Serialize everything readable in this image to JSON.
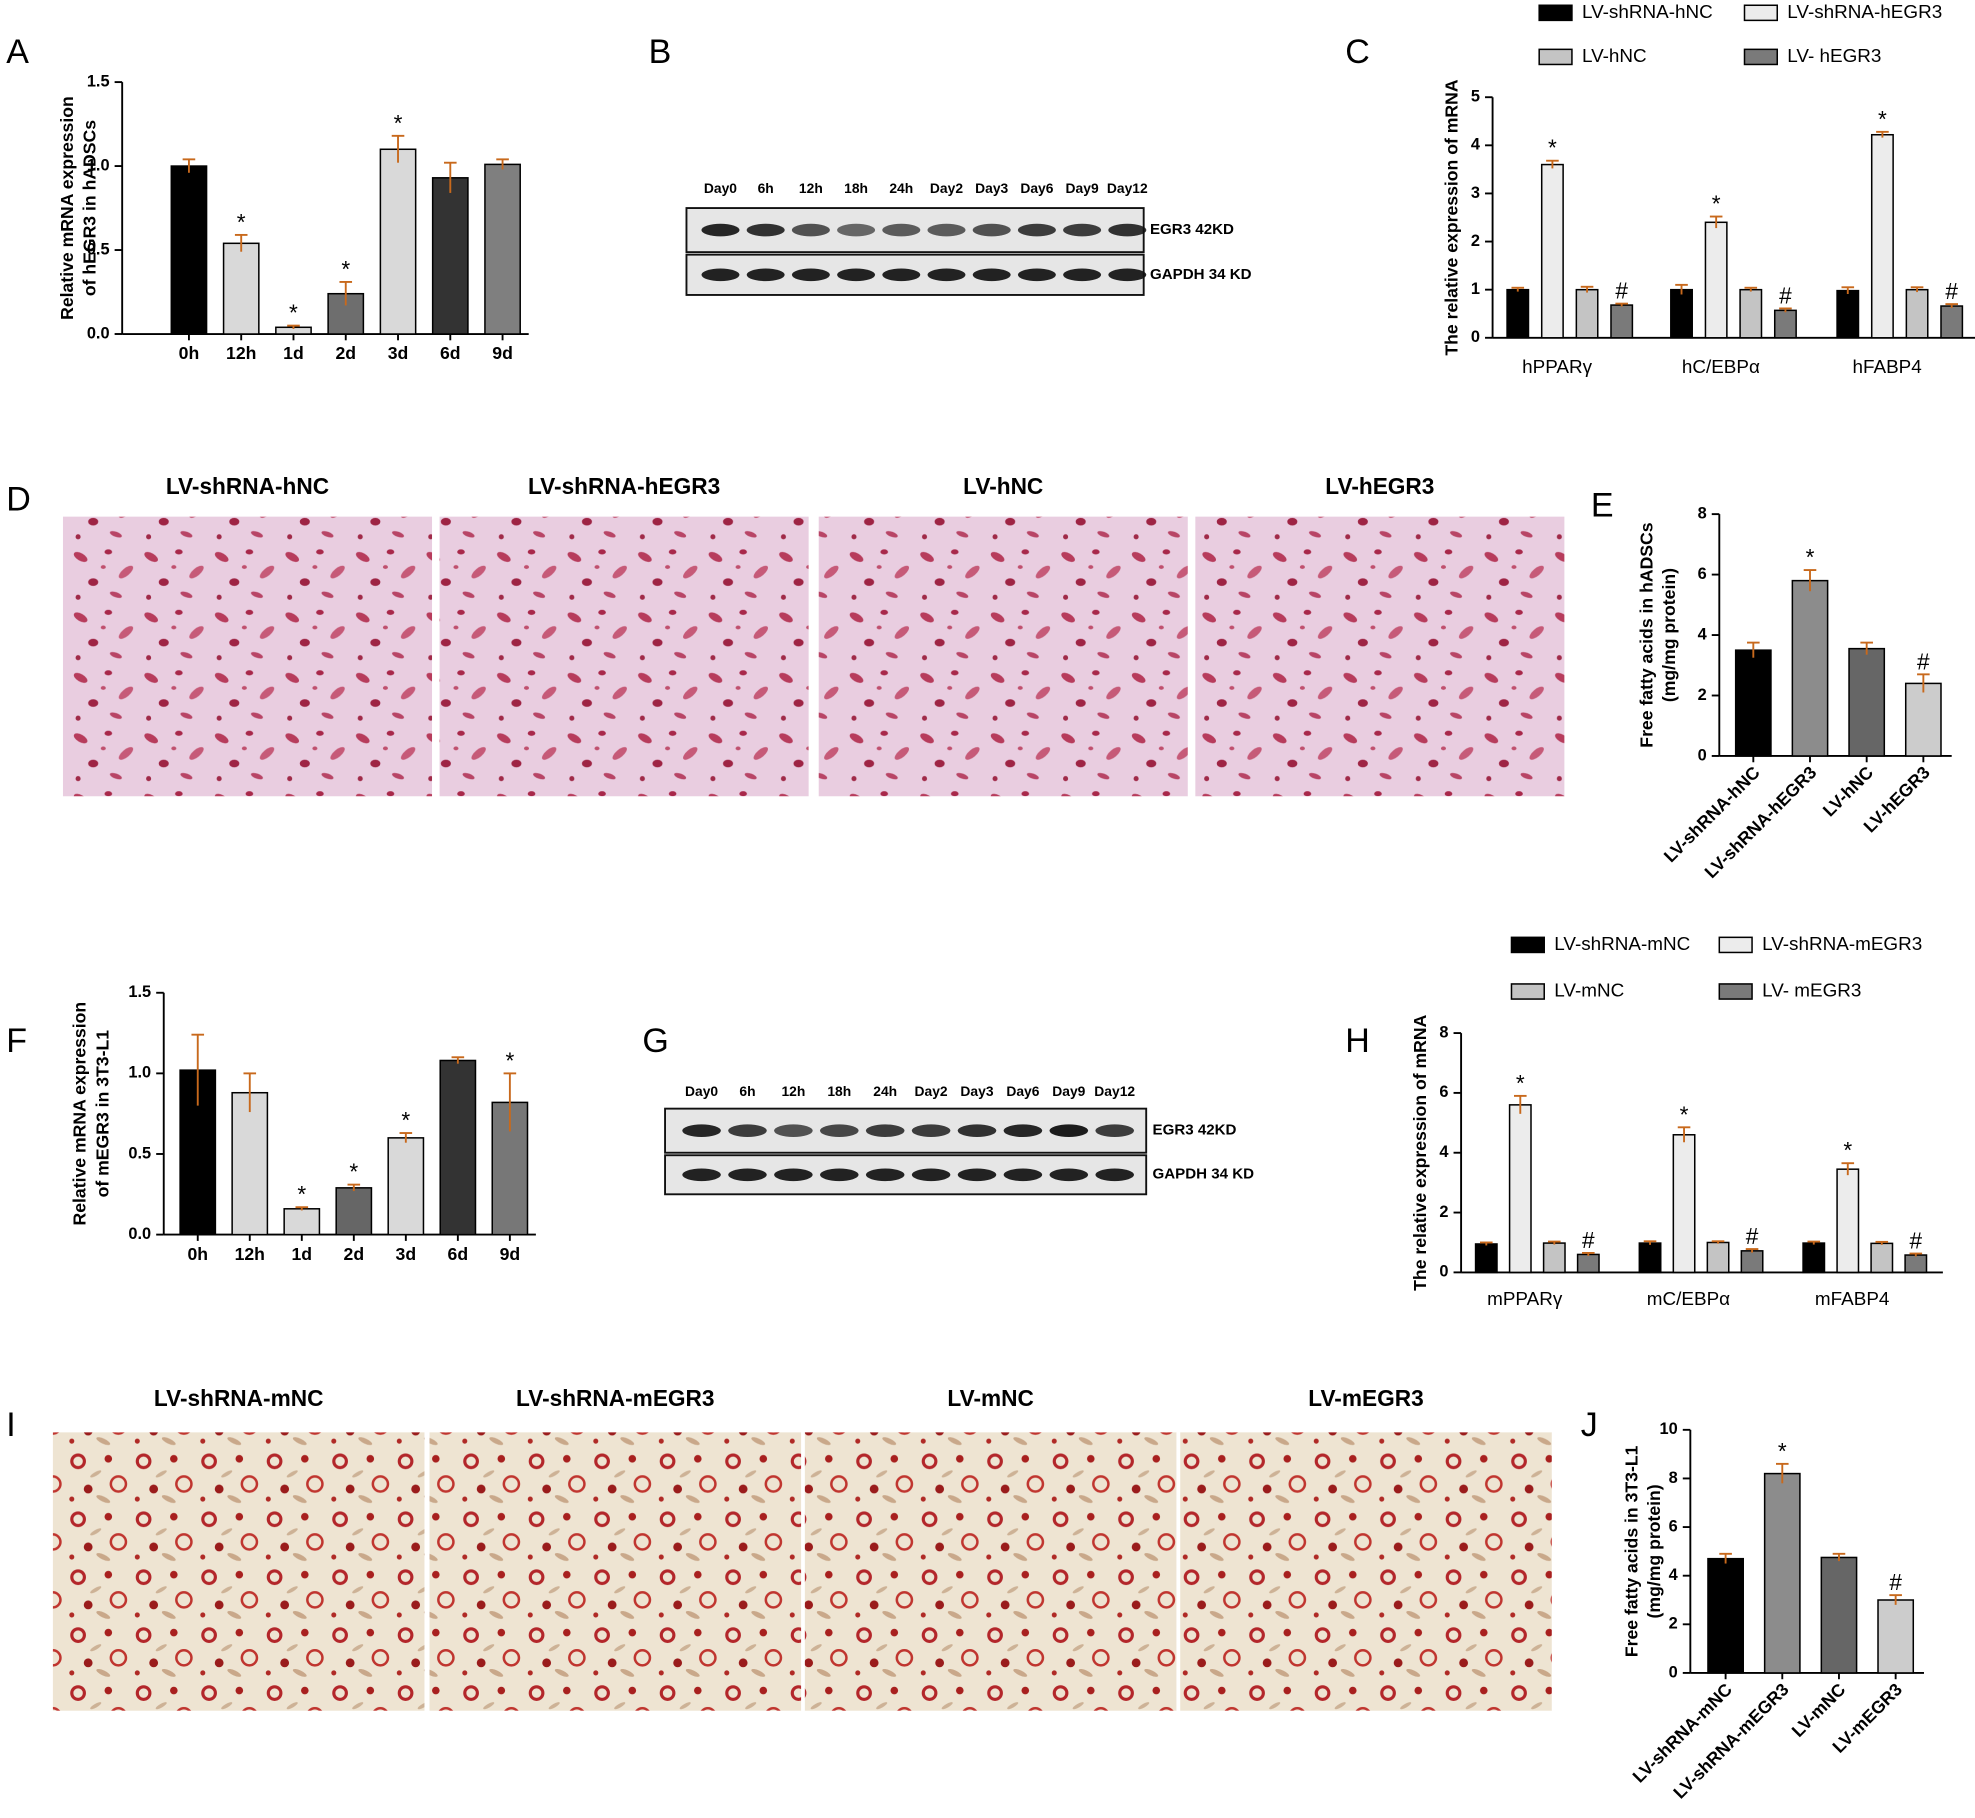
{
  "chart_data": [
    {
      "type": "bar",
      "label": "A",
      "ylabel": [
        "Relative mRNA expression",
        "of hEGR3 in hADSCs"
      ],
      "categories": [
        "0h",
        "12h",
        "1d",
        "2d",
        "3d",
        "6d",
        "9d"
      ],
      "values": [
        1.0,
        0.54,
        0.04,
        0.24,
        1.1,
        0.93,
        1.01
      ],
      "errors": [
        0.04,
        0.05,
        0.01,
        0.07,
        0.08,
        0.09,
        0.03
      ],
      "significance": [
        null,
        "*",
        "*",
        "*",
        "*",
        null,
        null
      ],
      "colors": [
        "#000000",
        "#d9d9d9",
        "#d9d9d9",
        "#6e6e6e",
        "#d9d9d9",
        "#333333",
        "#7f7f7f"
      ],
      "ylim": [
        0,
        1.5
      ],
      "yticks": [
        {
          "value": 0,
          "label": "0.0"
        },
        0.5,
        {
          "value": 1,
          "label": "1.0"
        },
        1.5
      ]
    },
    {
      "type": "grouped_bar",
      "label": "C",
      "ylabel": [
        "The relative expression of mRNA"
      ],
      "categories": [
        "hPPARγ",
        "hC/EBPα",
        "hFABP4"
      ],
      "series": [
        {
          "name": "LV-shRNA-hNC",
          "color": "#000000",
          "values": [
            1.0,
            1.0,
            0.98
          ],
          "errors": [
            0.04,
            0.1,
            0.07
          ]
        },
        {
          "name": "LV-shRNA-hEGR3",
          "color": "#ececec",
          "values": [
            3.6,
            2.4,
            4.22
          ],
          "errors": [
            0.08,
            0.12,
            0.06
          ],
          "significance": [
            "*",
            "*",
            "*"
          ]
        },
        {
          "name": "LV-hNC",
          "color": "#c4c4c4",
          "values": [
            1.0,
            1.0,
            1.0
          ],
          "errors": [
            0.06,
            0.04,
            0.05
          ]
        },
        {
          "name": "LV- hEGR3",
          "color": "#7a7a7a",
          "values": [
            0.68,
            0.57,
            0.66
          ],
          "errors": [
            0.03,
            0.04,
            0.04
          ],
          "significance": [
            "#",
            "#",
            "#"
          ]
        }
      ],
      "ylim": [
        0,
        5
      ],
      "yticks": [
        0,
        1,
        2,
        3,
        4,
        5
      ]
    },
    {
      "type": "bar",
      "label": "E",
      "ylabel": [
        "Free fatty acids in hADSCs",
        "(mg/mg protein)"
      ],
      "categories": [
        "LV-shRNA-hNC",
        "LV-shRNA-hEGR3",
        "LV-hNC",
        "LV-hEGR3"
      ],
      "values": [
        3.5,
        5.8,
        3.55,
        2.4
      ],
      "errors": [
        0.25,
        0.35,
        0.2,
        0.3
      ],
      "significance": [
        null,
        "*",
        null,
        "#"
      ],
      "colors": [
        "#000000",
        "#8c8c8c",
        "#666666",
        "#cccccc"
      ],
      "ylim": [
        0,
        8
      ],
      "yticks": [
        0,
        2,
        4,
        6,
        8
      ]
    },
    {
      "type": "bar",
      "label": "F",
      "ylabel": [
        "Relative mRNA expression",
        "of mEGR3 in 3T3-L1"
      ],
      "categories": [
        "0h",
        "12h",
        "1d",
        "2d",
        "3d",
        "6d",
        "9d"
      ],
      "values": [
        1.02,
        0.88,
        0.16,
        0.29,
        0.6,
        1.08,
        0.82
      ],
      "errors": [
        0.22,
        0.12,
        0.01,
        0.02,
        0.03,
        0.02,
        0.18
      ],
      "significance": [
        null,
        null,
        "*",
        "*",
        "*",
        null,
        "*"
      ],
      "colors": [
        "#000000",
        "#d9d9d9",
        "#d9d9d9",
        "#666666",
        "#d9d9d9",
        "#333333",
        "#777777"
      ],
      "ylim": [
        0,
        1.5
      ],
      "yticks": [
        {
          "value": 0,
          "label": "0.0"
        },
        0.5,
        {
          "value": 1,
          "label": "1.0"
        },
        1.5
      ]
    },
    {
      "type": "grouped_bar",
      "label": "H",
      "ylabel": [
        "The relative expression of mRNA"
      ],
      "categories": [
        "mPPARγ",
        "mC/EBPα",
        "mFABP4"
      ],
      "series": [
        {
          "name": "LV-shRNA-mNC",
          "color": "#000000",
          "values": [
            0.95,
            0.98,
            0.98
          ],
          "errors": [
            0.05,
            0.06,
            0.05
          ]
        },
        {
          "name": "LV-shRNA-mEGR3",
          "color": "#ececec",
          "values": [
            5.6,
            4.6,
            3.45
          ],
          "errors": [
            0.3,
            0.25,
            0.2
          ],
          "significance": [
            "*",
            "*",
            "*"
          ]
        },
        {
          "name": "LV-mNC",
          "color": "#c4c4c4",
          "values": [
            0.98,
            1.0,
            0.97
          ],
          "errors": [
            0.05,
            0.04,
            0.05
          ]
        },
        {
          "name": "LV- mEGR3",
          "color": "#7a7a7a",
          "values": [
            0.6,
            0.72,
            0.58
          ],
          "errors": [
            0.05,
            0.06,
            0.05
          ],
          "significance": [
            "#",
            "#",
            "#"
          ]
        }
      ],
      "ylim": [
        0,
        8
      ],
      "yticks": [
        0,
        2,
        4,
        6,
        8
      ]
    },
    {
      "type": "bar",
      "label": "J",
      "ylabel": [
        "Free fatty acids in 3T3-L1",
        "(mg/mg protein)"
      ],
      "categories": [
        "LV-shRNA-mNC",
        "LV-shRNA-mEGR3",
        "LV-mNC",
        "LV-mEGR3"
      ],
      "values": [
        4.7,
        8.2,
        4.75,
        3.0
      ],
      "errors": [
        0.2,
        0.4,
        0.15,
        0.2
      ],
      "significance": [
        null,
        "*",
        null,
        "#"
      ],
      "colors": [
        "#000000",
        "#8c8c8c",
        "#666666",
        "#cccccc"
      ],
      "ylim": [
        0,
        10
      ],
      "yticks": [
        0,
        2,
        4,
        6,
        8,
        10
      ]
    }
  ],
  "blots": [
    {
      "label": "B",
      "lanes": [
        "Day0",
        "6h",
        "12h",
        "18h",
        "24h",
        "Day2",
        "Day3",
        "Day6",
        "Day9",
        "Day12"
      ],
      "bands": [
        "EGR3 42KD",
        "GAPDH 34 KD"
      ]
    },
    {
      "label": "G",
      "lanes": [
        "Day0",
        "6h",
        "12h",
        "18h",
        "24h",
        "Day2",
        "Day3",
        "Day6",
        "Day9",
        "Day12"
      ],
      "bands": [
        "EGR3 42KD",
        "GAPDH 34 KD"
      ]
    }
  ],
  "micrographs": [
    {
      "label": "D",
      "titles": [
        "LV-shRNA-hNC",
        "LV-shRNA-hEGR3",
        "LV-hNC",
        "LV-hEGR3"
      ]
    },
    {
      "label": "I",
      "titles": [
        "LV-shRNA-mNC",
        "LV-shRNA-mEGR3",
        "LV-mNC",
        "LV-mEGR3"
      ]
    }
  ]
}
